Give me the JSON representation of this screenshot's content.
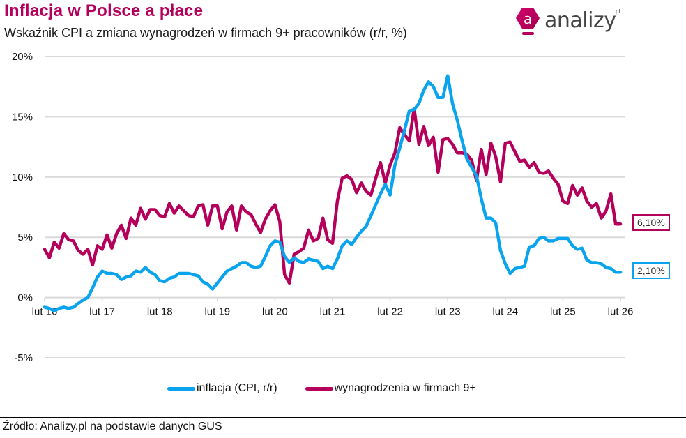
{
  "header": {
    "title": "Inflacja w Polsce a płace",
    "subtitle": "Wskaźnik CPI a zmiana wynagrodzeń w firmach 9+ pracowników (r/r, %)"
  },
  "logo": {
    "icon": "analizy-hexagon-a-icon",
    "letter": "a",
    "word": "analizy",
    "superscript": "pl",
    "color": "#b5005b"
  },
  "legend": [
    {
      "label": "inflacja (CPI, r/r)",
      "color": "#0aa4ee"
    },
    {
      "label": "wynagrodzenia w firmach 9+",
      "color": "#b5005b"
    }
  ],
  "end_labels": {
    "wages": "6,10%",
    "cpi": "2,10%"
  },
  "source": "Źródło: Analizy.pl na podstawie danych GUS",
  "chart_data": {
    "type": "line",
    "title": "Inflacja w Polsce a płace",
    "subtitle": "Wskaźnik CPI a zmiana wynagrodzeń w firmach 9+ pracowników (r/r, %)",
    "xlabel": "",
    "ylabel": "",
    "ylim": [
      -5,
      20
    ],
    "yticks": [
      -5,
      0,
      5,
      10,
      15,
      20
    ],
    "ytick_labels": [
      "-5%",
      "0%",
      "5%",
      "10%",
      "15%",
      "20%"
    ],
    "xtick_labels": [
      "lut 16",
      "lut 17",
      "lut 18",
      "lut 19",
      "lut 20",
      "lut 21",
      "lut 22",
      "lut 23",
      "lut 24",
      "lut 25",
      "lut 26"
    ],
    "x_start": "2016-02",
    "x_frequency": "monthly",
    "grid": "horizontal",
    "legend_position": "bottom",
    "colors": {
      "cpi": "#0aa4ee",
      "wages": "#b5005b"
    },
    "series": [
      {
        "name": "inflacja (CPI, r/r)",
        "key": "cpi",
        "end_label": "2,10%",
        "values": [
          -0.8,
          -0.9,
          -1.1,
          -0.9,
          -0.8,
          -0.9,
          -0.8,
          -0.5,
          -0.2,
          0.0,
          0.8,
          1.7,
          2.2,
          2.0,
          2.0,
          1.9,
          1.5,
          1.7,
          1.8,
          2.2,
          2.1,
          2.5,
          2.1,
          1.9,
          1.4,
          1.3,
          1.6,
          1.7,
          2.0,
          2.0,
          2.0,
          1.9,
          1.8,
          1.3,
          1.1,
          0.7,
          1.2,
          1.7,
          2.2,
          2.4,
          2.6,
          2.9,
          2.9,
          2.6,
          2.5,
          2.6,
          3.4,
          4.3,
          4.7,
          4.6,
          3.4,
          2.9,
          3.3,
          3.0,
          2.9,
          3.2,
          3.1,
          3.0,
          2.4,
          2.6,
          2.4,
          3.2,
          4.3,
          4.7,
          4.4,
          5.0,
          5.5,
          5.9,
          6.8,
          7.7,
          8.6,
          9.4,
          8.5,
          11.0,
          12.4,
          13.9,
          15.5,
          15.6,
          16.1,
          17.2,
          17.9,
          17.5,
          16.6,
          16.6,
          18.4,
          16.1,
          14.7,
          13.0,
          11.5,
          10.8,
          10.1,
          8.2,
          6.6,
          6.6,
          6.2,
          3.9,
          2.8,
          2.0,
          2.4,
          2.5,
          2.6,
          4.2,
          4.3,
          4.9,
          5.0,
          4.7,
          4.7,
          4.9,
          4.9,
          4.9,
          4.3,
          4.0,
          4.1,
          3.1,
          2.9,
          2.9,
          2.8,
          2.5,
          2.4,
          2.1,
          2.1
        ]
      },
      {
        "name": "wynagrodzenia w firmach 9+",
        "key": "wages",
        "end_label": "6,10%",
        "values": [
          4.0,
          3.3,
          4.6,
          4.1,
          5.3,
          4.8,
          4.7,
          3.9,
          3.6,
          4.0,
          2.7,
          4.3,
          4.0,
          5.2,
          4.1,
          5.3,
          6.0,
          4.9,
          6.6,
          6.0,
          7.4,
          6.5,
          7.3,
          7.3,
          6.8,
          6.7,
          7.8,
          7.0,
          7.6,
          7.2,
          6.8,
          6.7,
          7.6,
          7.7,
          6.0,
          7.6,
          7.6,
          5.7,
          7.1,
          7.6,
          5.6,
          7.6,
          7.1,
          6.9,
          6.1,
          5.4,
          6.5,
          7.2,
          7.7,
          6.3,
          1.9,
          1.2,
          3.6,
          3.8,
          4.1,
          5.6,
          4.7,
          4.9,
          6.6,
          4.8,
          4.5,
          8.0,
          9.9,
          10.1,
          9.8,
          8.7,
          9.5,
          8.8,
          8.5,
          9.9,
          11.2,
          9.5,
          11.0,
          12.0,
          14.1,
          13.5,
          13.0,
          15.7,
          12.7,
          14.2,
          12.6,
          13.3,
          10.4,
          13.1,
          13.2,
          12.7,
          12.0,
          12.0,
          11.9,
          11.4,
          9.7,
          12.3,
          10.2,
          12.8,
          11.7,
          9.6,
          12.8,
          12.9,
          12.1,
          11.3,
          11.4,
          10.8,
          11.2,
          10.4,
          10.3,
          10.5,
          9.9,
          9.4,
          8.0,
          7.8,
          9.3,
          8.5,
          9.1,
          8.0,
          7.5,
          7.8,
          6.6,
          7.2,
          8.6,
          6.1,
          6.1
        ]
      }
    ]
  }
}
